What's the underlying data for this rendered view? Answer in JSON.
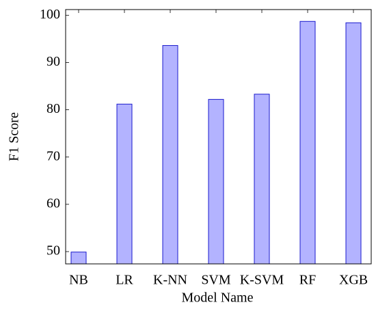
{
  "chart_data": {
    "type": "bar",
    "x_label": "Model Name",
    "y_label": "F1 Score",
    "categories": [
      "NB",
      "LR",
      "K-NN",
      "SVM",
      "K-SVM",
      "RF",
      "XGB"
    ],
    "values": [
      49.9,
      81.2,
      93.6,
      82.2,
      83.3,
      98.7,
      98.4
    ],
    "color": "#b3b3ff",
    "edge_color": "#1a1acc",
    "ylim": [
      47.4,
      101.2
    ],
    "yticks": [
      50,
      60,
      70,
      80,
      90,
      100
    ],
    "grid": false
  }
}
